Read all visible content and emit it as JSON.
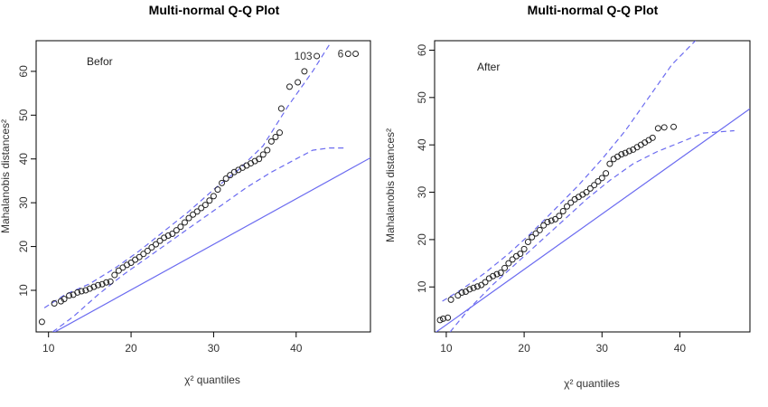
{
  "chart_data": [
    {
      "type": "scatter",
      "title": "Multi-normal Q-Q Plot",
      "xlabel": "χ² quantiles",
      "ylabel": "Mahalanobis distances²",
      "annotation": "Befor",
      "xlim": [
        8.5,
        49
      ],
      "ylim": [
        0.5,
        67
      ],
      "xticks": [
        10,
        20,
        30,
        40
      ],
      "yticks": [
        10,
        20,
        30,
        40,
        50,
        60
      ],
      "reference_line": {
        "slope": 1.04,
        "intercept": -10.7
      },
      "upper_band": [
        [
          9.5,
          6
        ],
        [
          12,
          9
        ],
        [
          15,
          11.5
        ],
        [
          18,
          15
        ],
        [
          21,
          19
        ],
        [
          24,
          23.5
        ],
        [
          27,
          28
        ],
        [
          30,
          33
        ],
        [
          33,
          37.5
        ],
        [
          36,
          43
        ],
        [
          39,
          52
        ],
        [
          42,
          60
        ],
        [
          44,
          66
        ]
      ],
      "lower_band": [
        [
          10.5,
          0.5
        ],
        [
          13,
          4
        ],
        [
          16,
          9
        ],
        [
          19,
          13.5
        ],
        [
          22,
          17.5
        ],
        [
          25,
          21.5
        ],
        [
          28,
          25.5
        ],
        [
          31,
          29.5
        ],
        [
          34,
          33.5
        ],
        [
          37,
          37
        ],
        [
          40,
          40
        ],
        [
          42,
          42
        ],
        [
          44,
          42.5
        ],
        [
          46,
          42.5
        ]
      ],
      "points": [
        [
          9.2,
          2.8
        ],
        [
          10.7,
          7
        ],
        [
          11.5,
          7.5
        ],
        [
          11.9,
          8
        ],
        [
          12.5,
          8.8
        ],
        [
          13,
          9
        ],
        [
          13.5,
          9.5
        ],
        [
          14,
          9.8
        ],
        [
          14.5,
          10
        ],
        [
          15,
          10.4
        ],
        [
          15.5,
          10.8
        ],
        [
          16,
          11.2
        ],
        [
          16.5,
          11.4
        ],
        [
          17,
          11.8
        ],
        [
          17.5,
          12
        ],
        [
          18,
          13.5
        ],
        [
          18.5,
          14.5
        ],
        [
          19,
          15.2
        ],
        [
          19.5,
          15.8
        ],
        [
          20,
          16.3
        ],
        [
          20.5,
          17
        ],
        [
          21,
          17.6
        ],
        [
          21.5,
          18.3
        ],
        [
          22,
          19
        ],
        [
          22.5,
          19.8
        ],
        [
          23,
          20.5
        ],
        [
          23.5,
          21.3
        ],
        [
          24,
          22
        ],
        [
          24.5,
          22.5
        ],
        [
          25,
          22.9
        ],
        [
          25.5,
          23.7
        ],
        [
          26,
          24.5
        ],
        [
          26.5,
          25.5
        ],
        [
          27,
          26.5
        ],
        [
          27.5,
          27.3
        ],
        [
          28,
          28
        ],
        [
          28.5,
          28.8
        ],
        [
          29,
          29.5
        ],
        [
          29.5,
          30.5
        ],
        [
          30,
          31.5
        ],
        [
          30.5,
          33
        ],
        [
          31,
          34.5
        ],
        [
          31.5,
          35.5
        ],
        [
          32,
          36.3
        ],
        [
          32.5,
          37
        ],
        [
          33,
          37.5
        ],
        [
          33.5,
          38
        ],
        [
          34,
          38.5
        ],
        [
          34.5,
          39
        ],
        [
          35,
          39.5
        ],
        [
          35.5,
          40
        ],
        [
          36,
          41
        ],
        [
          36.5,
          42
        ],
        [
          37,
          44
        ],
        [
          37.5,
          45
        ],
        [
          38,
          46
        ],
        [
          38.2,
          51.5
        ],
        [
          39.2,
          56.5
        ],
        [
          40.2,
          57.5
        ],
        [
          41,
          60
        ],
        [
          42.5,
          63.5
        ],
        [
          46.3,
          64
        ],
        [
          47.2,
          64
        ]
      ],
      "point_labels": [
        {
          "label": "103",
          "x": 42.5,
          "y": 63.5
        },
        {
          "label": "6",
          "x": 46.3,
          "y": 64
        }
      ]
    },
    {
      "type": "scatter",
      "title": "Multi-normal Q-Q Plot",
      "xlabel": "χ² quantiles",
      "ylabel": "Mahalanobis distances²",
      "annotation": "After",
      "xlim": [
        8.5,
        49
      ],
      "ylim": [
        0.5,
        62
      ],
      "xticks": [
        10,
        20,
        30,
        40
      ],
      "yticks": [
        10,
        20,
        30,
        40,
        50,
        60
      ],
      "reference_line": {
        "slope": 1.17,
        "intercept": -9.7
      },
      "upper_band": [
        [
          9.5,
          7
        ],
        [
          12,
          9.5
        ],
        [
          15,
          13
        ],
        [
          18,
          17
        ],
        [
          21,
          21.5
        ],
        [
          24,
          26.5
        ],
        [
          27,
          31.5
        ],
        [
          30,
          37
        ],
        [
          33,
          43
        ],
        [
          36,
          50
        ],
        [
          39,
          57
        ],
        [
          42,
          62
        ]
      ],
      "lower_band": [
        [
          10.5,
          0.5
        ],
        [
          13,
          5.5
        ],
        [
          16,
          10.5
        ],
        [
          19,
          15
        ],
        [
          22,
          19.5
        ],
        [
          25,
          24
        ],
        [
          28,
          28.5
        ],
        [
          31,
          32.5
        ],
        [
          34,
          36
        ],
        [
          37,
          38.5
        ],
        [
          40,
          40.5
        ],
        [
          43,
          42.5
        ],
        [
          47,
          43
        ]
      ],
      "points": [
        [
          9.2,
          3
        ],
        [
          9.6,
          3.3
        ],
        [
          10.2,
          3.5
        ],
        [
          10.6,
          7.3
        ],
        [
          11.5,
          8.2
        ],
        [
          12,
          8.8
        ],
        [
          12.5,
          9
        ],
        [
          13,
          9.5
        ],
        [
          13.5,
          9.8
        ],
        [
          14,
          10.1
        ],
        [
          14.5,
          10.4
        ],
        [
          15,
          11
        ],
        [
          15.5,
          11.8
        ],
        [
          16,
          12.3
        ],
        [
          16.5,
          12.7
        ],
        [
          17,
          13
        ],
        [
          17.5,
          14
        ],
        [
          18,
          15
        ],
        [
          18.5,
          15.8
        ],
        [
          19,
          16.5
        ],
        [
          19.5,
          17
        ],
        [
          20,
          18
        ],
        [
          20.5,
          19.5
        ],
        [
          21,
          20.5
        ],
        [
          21.5,
          21.3
        ],
        [
          22,
          22
        ],
        [
          22.5,
          23
        ],
        [
          23,
          23.7
        ],
        [
          23.5,
          24
        ],
        [
          24,
          24.3
        ],
        [
          24.5,
          25
        ],
        [
          25,
          26
        ],
        [
          25.5,
          27
        ],
        [
          26,
          27.8
        ],
        [
          26.5,
          28.5
        ],
        [
          27,
          29
        ],
        [
          27.5,
          29.5
        ],
        [
          28,
          30
        ],
        [
          28.5,
          30.8
        ],
        [
          29,
          31.5
        ],
        [
          29.5,
          32.3
        ],
        [
          30,
          33
        ],
        [
          30.5,
          34
        ],
        [
          31,
          36
        ],
        [
          31.5,
          37
        ],
        [
          32,
          37.5
        ],
        [
          32.5,
          38
        ],
        [
          33,
          38.3
        ],
        [
          33.5,
          38.7
        ],
        [
          34,
          39
        ],
        [
          34.5,
          39.5
        ],
        [
          35,
          40
        ],
        [
          35.5,
          40.5
        ],
        [
          36,
          41
        ],
        [
          36.5,
          41.5
        ],
        [
          37.2,
          43.5
        ],
        [
          38,
          43.7
        ],
        [
          39.2,
          43.8
        ]
      ]
    }
  ]
}
